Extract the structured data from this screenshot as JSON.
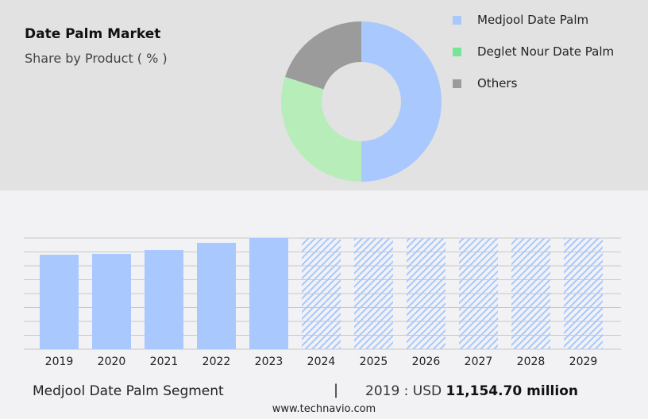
{
  "header": {
    "title": "Date Palm Market",
    "subtitle": "Share by Product ( % )"
  },
  "chart_data": [
    {
      "type": "pie",
      "donut": true,
      "categories": [
        "Medjool Date Palm",
        "Deglet Nour Date Palm",
        "Others"
      ],
      "values": [
        50,
        30,
        20
      ],
      "colors": [
        "#a8c8fe",
        "#b7edb9",
        "#9b9b9b"
      ],
      "legend_colors": [
        "#a8c8fe",
        "#77e49a",
        "#9b9b9b"
      ],
      "legend": "right"
    },
    {
      "type": "bar",
      "categories": [
        "2019",
        "2020",
        "2021",
        "2022",
        "2023",
        "2024",
        "2025",
        "2026",
        "2027",
        "2028",
        "2029"
      ],
      "values": [
        11154.7,
        11250,
        11710,
        12560,
        13120,
        null,
        null,
        null,
        null,
        null,
        null
      ],
      "forecast": [
        "2024",
        "2025",
        "2026",
        "2027",
        "2028",
        "2029"
      ],
      "color": "#a8c8fe",
      "grid": true,
      "ylim": [
        0,
        13120
      ]
    }
  ],
  "footer": {
    "segment": "Medjool Date Palm Segment",
    "separator": "|",
    "year_label": "2019 : USD",
    "value": "11,154.70 million",
    "site": "www.technavio.com"
  }
}
